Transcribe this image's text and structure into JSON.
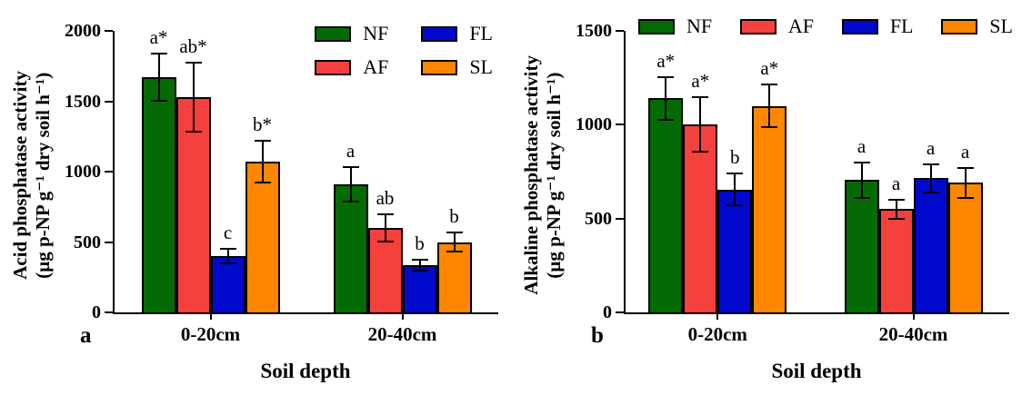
{
  "figure_title": "",
  "chart_data": [
    {
      "type": "bar",
      "panel_label": "a",
      "ylabel": "Acid phosphatase activity",
      "ylabel_units": "(µg p-NP g⁻¹ dry soil h⁻¹)",
      "xlabel": "Soil depth",
      "ylim": [
        0,
        2000
      ],
      "yticks": [
        0,
        500,
        1000,
        1500,
        2000
      ],
      "grid": false,
      "legend_layout": "grid2x2",
      "legend_position": "top-right, 2 columns × 2 rows",
      "legend_order": [
        "NF",
        "FL",
        "AF",
        "SL"
      ],
      "categories": [
        "0-20cm",
        "20-40cm"
      ],
      "series": [
        {
          "name": "NF",
          "color": "#046B04",
          "values": [
            1670,
            910
          ],
          "errors": [
            175,
            130
          ],
          "letters": [
            "a*",
            "a"
          ]
        },
        {
          "name": "AF",
          "color": "#F5413E",
          "values": [
            1530,
            600
          ],
          "errors": [
            250,
            105
          ],
          "letters": [
            "ab*",
            "ab"
          ]
        },
        {
          "name": "FL",
          "color": "#0009CC",
          "values": [
            400,
            335
          ],
          "errors": [
            55,
            45
          ],
          "letters": [
            "c",
            "b"
          ]
        },
        {
          "name": "SL",
          "color": "#FF8700",
          "values": [
            1070,
            500
          ],
          "errors": [
            155,
            75
          ],
          "letters": [
            "b*",
            "b"
          ]
        }
      ]
    },
    {
      "type": "bar",
      "panel_label": "b",
      "ylabel": "Alkaline phosphatase activity",
      "ylabel_units": "(µg p-NP g⁻¹ dry soil h⁻¹)",
      "xlabel": "Soil depth",
      "ylim": [
        0,
        1500
      ],
      "yticks": [
        0,
        500,
        1000,
        1500
      ],
      "grid": false,
      "legend_layout": "row",
      "legend_position": "top, single row",
      "legend_order": [
        "NF",
        "AF",
        "FL",
        "SL"
      ],
      "categories": [
        "0-20cm",
        "20-40cm"
      ],
      "series": [
        {
          "name": "NF",
          "color": "#046B04",
          "values": [
            1140,
            705
          ],
          "errors": [
            120,
            100
          ],
          "letters": [
            "a*",
            "a"
          ]
        },
        {
          "name": "AF",
          "color": "#F5413E",
          "values": [
            1000,
            550
          ],
          "errors": [
            150,
            55
          ],
          "letters": [
            "a*",
            "a"
          ]
        },
        {
          "name": "FL",
          "color": "#0009CC",
          "values": [
            655,
            715
          ],
          "errors": [
            90,
            80
          ],
          "letters": [
            "b",
            "a"
          ]
        },
        {
          "name": "SL",
          "color": "#FF8700",
          "values": [
            1100,
            690
          ],
          "errors": [
            120,
            85
          ],
          "letters": [
            "a*",
            "a"
          ]
        }
      ]
    }
  ]
}
